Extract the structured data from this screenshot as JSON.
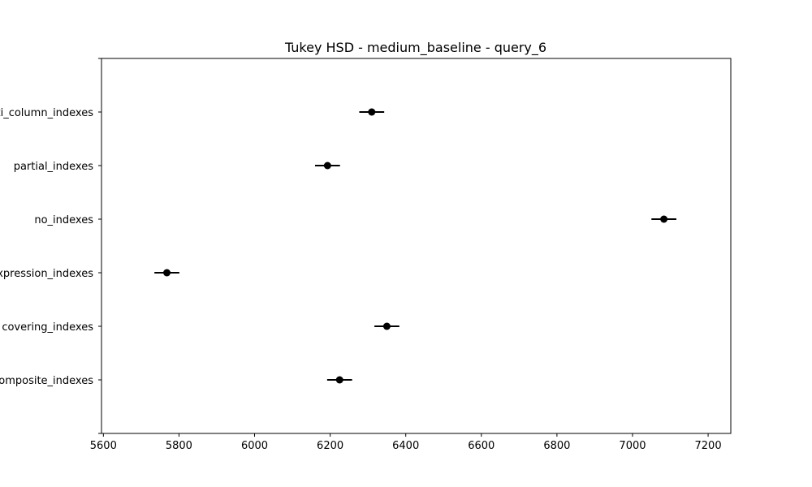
{
  "chart_data": {
    "type": "scatter",
    "title": "Tukey HSD - medium_baseline - query_6",
    "xlabel": "",
    "ylabel": "",
    "xlim": [
      5595,
      7260
    ],
    "x_ticks": [
      5600,
      5800,
      6000,
      6200,
      6400,
      6600,
      6800,
      7000,
      7200
    ],
    "x_tick_labels": [
      "5600",
      "5800",
      "6000",
      "6200",
      "6400",
      "6600",
      "6800",
      "7000",
      "7200"
    ],
    "grid": false,
    "groups": [
      {
        "label": "composite_indexes",
        "mean": 6225,
        "lower": 6192,
        "upper": 6258
      },
      {
        "label": "covering_indexes",
        "mean": 6350,
        "lower": 6317,
        "upper": 6383
      },
      {
        "label": "expression_indexes",
        "mean": 5768,
        "lower": 5735,
        "upper": 5801
      },
      {
        "label": "no_indexes",
        "mean": 7083,
        "lower": 7050,
        "upper": 7116
      },
      {
        "label": "partial_indexes",
        "mean": 6193,
        "lower": 6160,
        "upper": 6226
      },
      {
        "label": "multi_column_indexes",
        "mean": 6310,
        "lower": 6277,
        "upper": 6343
      }
    ],
    "colors": {
      "marker": "#000000",
      "axis": "#000000",
      "background": "#ffffff"
    }
  }
}
